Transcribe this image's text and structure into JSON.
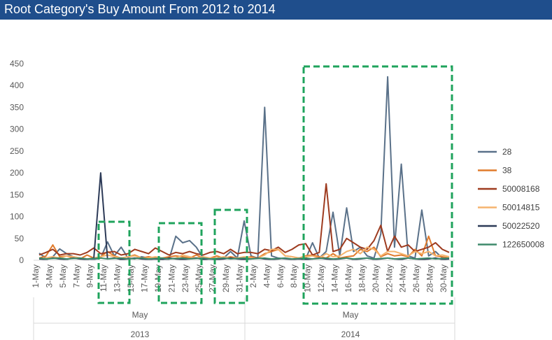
{
  "chart_data": {
    "type": "line",
    "title": "Root Category's Buy Amount From 2012 to 2014",
    "ylim": [
      0,
      450
    ],
    "yticks": [
      0,
      50,
      100,
      150,
      200,
      250,
      300,
      350,
      400,
      450
    ],
    "x_tick_labels": [
      "1-May",
      "3-May",
      "5-May",
      "7-May",
      "9-May",
      "11-May",
      "13-May",
      "15-May",
      "17-May",
      "19-May",
      "21-May",
      "23-May",
      "25-May",
      "27-May",
      "29-May",
      "31-May",
      "2-May",
      "4-May",
      "6-May",
      "8-May",
      "10-May",
      "12-May",
      "14-May",
      "16-May",
      "18-May",
      "20-May",
      "22-May",
      "24-May",
      "26-May",
      "28-May",
      "30-May"
    ],
    "groups": [
      {
        "month": "May",
        "year": "2013"
      },
      {
        "month": "May",
        "year": "2014"
      }
    ],
    "series": [
      {
        "name": "28",
        "color": "#5a7189",
        "values": [
          16,
          5,
          8,
          26,
          15,
          8,
          5,
          3,
          2,
          5,
          42,
          10,
          30,
          5,
          3,
          8,
          5,
          4,
          3,
          2,
          55,
          40,
          45,
          30,
          5,
          3,
          2,
          5,
          20,
          5,
          90,
          10,
          5,
          350,
          10,
          5,
          3,
          2,
          5,
          3,
          40,
          5,
          20,
          110,
          10,
          120,
          20,
          30,
          10,
          5,
          60,
          420,
          30,
          220,
          10,
          5,
          115,
          10,
          20,
          5,
          5
        ]
      },
      {
        "name": "38",
        "color": "#e07b2c",
        "values": [
          5,
          10,
          35,
          8,
          10,
          5,
          3,
          12,
          5,
          8,
          20,
          10,
          5,
          8,
          12,
          5,
          8,
          5,
          5,
          8,
          10,
          8,
          5,
          12,
          5,
          5,
          10,
          5,
          8,
          5,
          5,
          8,
          5,
          15,
          20,
          25,
          10,
          8,
          5,
          10,
          12,
          8,
          5,
          15,
          5,
          8,
          10,
          25,
          20,
          30,
          8,
          15,
          10,
          12,
          8,
          25,
          10,
          55,
          10,
          8,
          5
        ]
      },
      {
        "name": "50008168",
        "color": "#9e3b1f",
        "values": [
          12,
          18,
          25,
          12,
          15,
          15,
          12,
          18,
          28,
          15,
          18,
          20,
          12,
          15,
          25,
          20,
          15,
          28,
          20,
          12,
          18,
          15,
          20,
          15,
          12,
          18,
          20,
          15,
          25,
          15,
          18,
          18,
          15,
          25,
          22,
          30,
          18,
          25,
          35,
          38,
          12,
          18,
          175,
          20,
          25,
          50,
          40,
          30,
          25,
          45,
          80,
          20,
          55,
          30,
          35,
          20,
          25,
          30,
          40,
          25,
          18
        ]
      },
      {
        "name": "50014815",
        "color": "#f5b46e",
        "values": [
          3,
          5,
          8,
          5,
          10,
          8,
          5,
          3,
          5,
          8,
          12,
          8,
          5,
          8,
          10,
          5,
          5,
          8,
          5,
          3,
          5,
          12,
          8,
          5,
          8,
          5,
          5,
          8,
          5,
          5,
          8,
          5,
          5,
          12,
          25,
          25,
          10,
          8,
          5,
          8,
          10,
          5,
          15,
          8,
          10,
          20,
          25,
          15,
          30,
          25,
          10,
          20,
          20,
          15,
          10,
          20,
          15,
          20,
          10,
          12,
          8
        ]
      },
      {
        "name": "50022520",
        "color": "#2c3a57",
        "values": [
          3,
          2,
          5,
          3,
          2,
          5,
          3,
          2,
          5,
          200,
          3,
          5,
          2,
          3,
          5,
          3,
          2,
          3,
          2,
          5,
          3,
          2,
          3,
          5,
          2,
          3,
          2,
          3,
          5,
          3,
          2,
          3,
          5,
          3,
          2,
          3,
          5,
          2,
          3,
          2,
          3,
          5,
          3,
          2,
          3,
          5,
          2,
          3,
          5,
          2,
          3,
          5,
          3,
          2,
          5,
          3,
          2,
          3,
          5,
          2,
          3
        ]
      },
      {
        "name": "122650008",
        "color": "#3e8a6b",
        "values": [
          5,
          3,
          4,
          5,
          3,
          4,
          5,
          3,
          4,
          5,
          3,
          4,
          5,
          3,
          4,
          5,
          3,
          4,
          5,
          3,
          4,
          5,
          3,
          4,
          5,
          3,
          4,
          5,
          3,
          4,
          5,
          3,
          4,
          5,
          3,
          4,
          5,
          3,
          4,
          5,
          3,
          4,
          5,
          3,
          4,
          5,
          3,
          4,
          5,
          3,
          4,
          5,
          3,
          4,
          5,
          3,
          4,
          5,
          3,
          4,
          5
        ]
      }
    ],
    "legend_position": "right",
    "grid": false
  }
}
